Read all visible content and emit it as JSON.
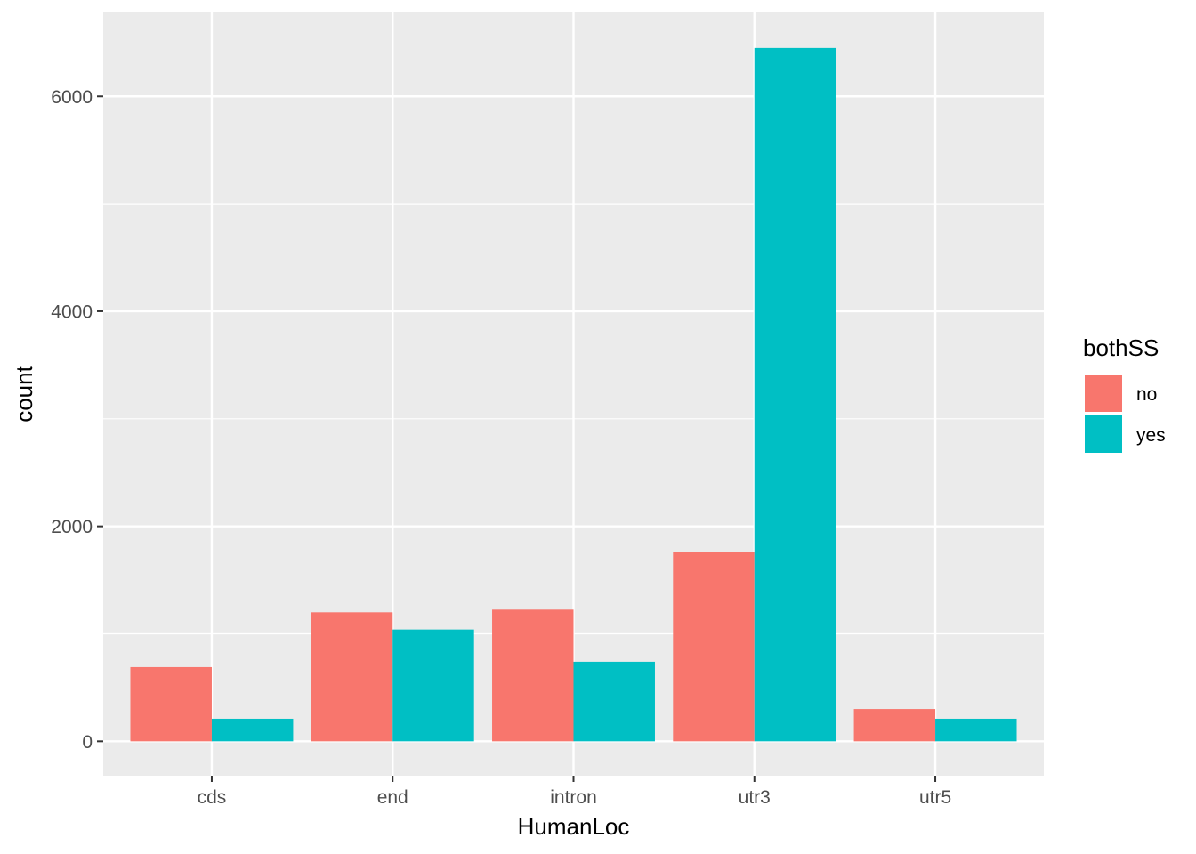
{
  "chart_data": {
    "type": "bar",
    "xlabel": "HumanLoc",
    "ylabel": "count",
    "categories": [
      "cds",
      "end",
      "intron",
      "utr3",
      "utr5"
    ],
    "series": [
      {
        "name": "no",
        "color": "#F8766D",
        "values": [
          690,
          1200,
          1225,
          1765,
          300
        ]
      },
      {
        "name": "yes",
        "color": "#00BFC4",
        "values": [
          210,
          1040,
          740,
          6450,
          210
        ]
      }
    ],
    "ylim": [
      -320,
      6780
    ],
    "yticks": [
      0,
      2000,
      4000,
      6000
    ],
    "ytick_labels": [
      "0",
      "2000",
      "4000",
      "6000"
    ],
    "grid": true,
    "legend": {
      "title": "bothSS",
      "position": "right"
    },
    "colors": {
      "panel": "#EBEBEB",
      "grid": "#FFFFFF",
      "text": "#4D4D4D",
      "tick": "#333333"
    }
  }
}
